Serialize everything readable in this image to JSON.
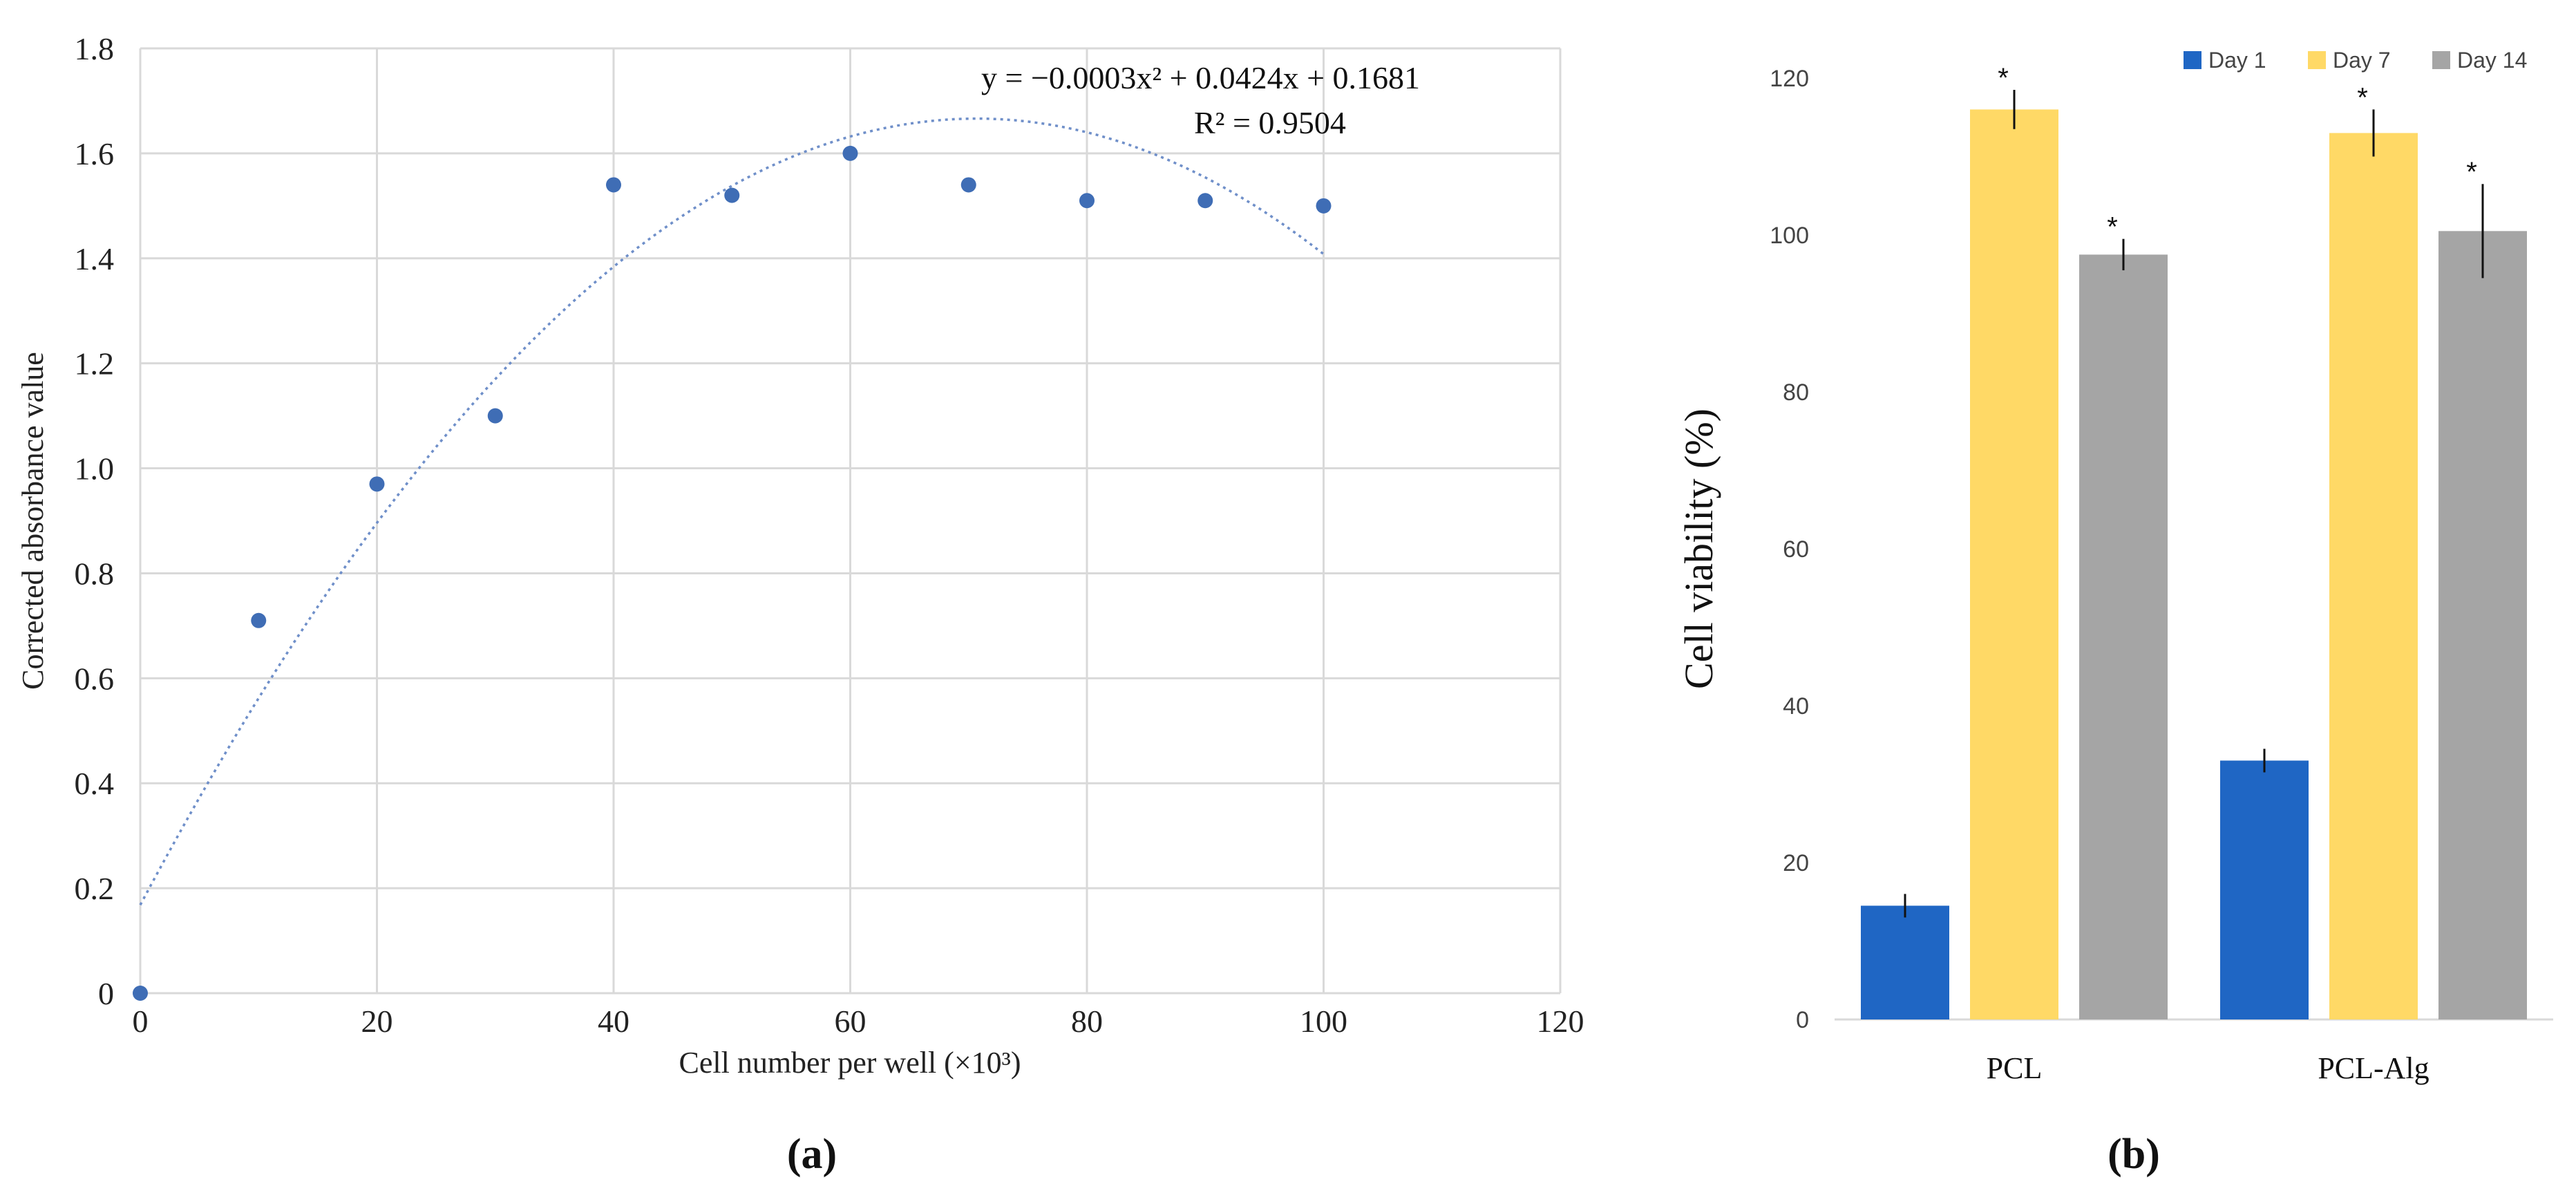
{
  "chart_data": [
    {
      "type": "scatter",
      "panel_label": "(a)",
      "title": "",
      "xlabel": "Cell number per well (×10³)",
      "ylabel": "Corrected absorbance value",
      "xlim": [
        0,
        120
      ],
      "ylim": [
        0,
        1.8
      ],
      "xticks": [
        "0",
        "20",
        "40",
        "60",
        "80",
        "100",
        "120"
      ],
      "yticks": [
        "0",
        "0.2",
        "0.4",
        "0.6",
        "0.8",
        "1.0",
        "1.2",
        "1.4",
        "1.6",
        "1.8"
      ],
      "grid": true,
      "legend": "none",
      "colors": {
        "points": "#3f6db5",
        "trendline": "#6f8fc9",
        "grid": "#d9d9d9"
      },
      "series": [
        {
          "x": [
            0,
            10,
            20,
            30,
            40,
            50,
            60,
            70,
            80,
            90,
            100
          ],
          "y": [
            0.0,
            0.71,
            0.97,
            1.1,
            1.54,
            1.52,
            1.6,
            1.54,
            1.51,
            1.51,
            1.5
          ]
        }
      ],
      "trendline": {
        "type": "polynomial-2",
        "coefficients": {
          "a": -0.0003,
          "b": 0.0424,
          "c": 0.1681
        },
        "x_range": [
          0,
          100
        ],
        "equation": "y = −0.0003x² + 0.0424x + 0.1681",
        "r_squared": "R² = 0.9504"
      }
    },
    {
      "type": "bar",
      "panel_label": "(b)",
      "title": "",
      "xlabel": "",
      "ylabel": "Cell viability (%)",
      "ylim": [
        0,
        120
      ],
      "yticks": [
        "0",
        "20",
        "40",
        "60",
        "80",
        "100",
        "120"
      ],
      "grid": false,
      "legend": "top-right",
      "categories": [
        "PCL",
        "PCL-Alg"
      ],
      "series": [
        {
          "name": "Day 1",
          "color": "#1f66c4",
          "values": [
            14.5,
            33
          ],
          "errors": [
            1.5,
            1.5
          ],
          "significant": [
            false,
            false
          ]
        },
        {
          "name": "Day 7",
          "color": "#ffd966",
          "values": [
            116,
            113
          ],
          "errors": [
            2.5,
            3
          ],
          "significant": [
            true,
            true
          ]
        },
        {
          "name": "Day 14",
          "color": "#a5a5a5",
          "values": [
            97.5,
            100.5
          ],
          "errors": [
            2,
            6
          ],
          "significant": [
            true,
            true
          ]
        }
      ],
      "significance_marker": "*"
    }
  ]
}
